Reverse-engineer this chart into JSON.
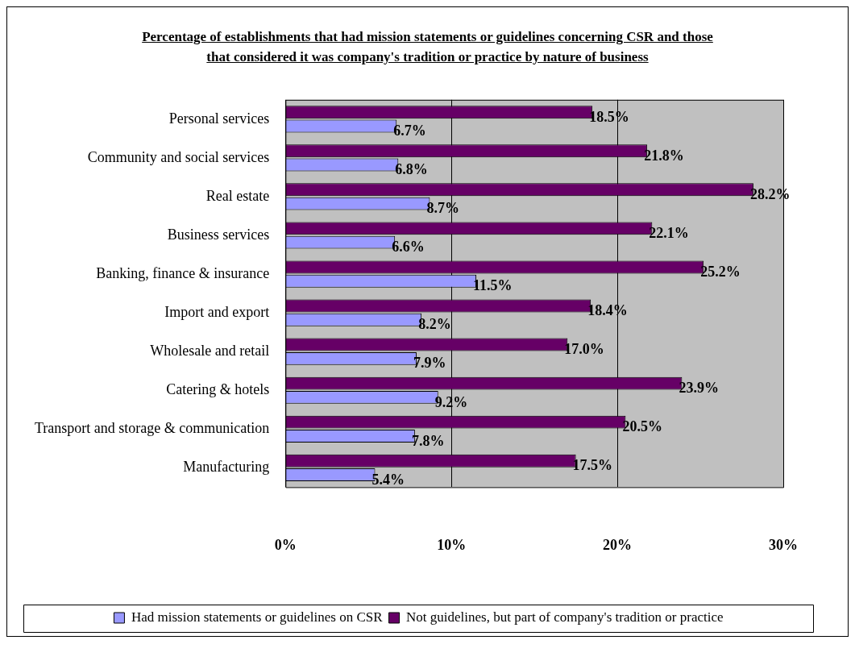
{
  "chart_data": {
    "type": "bar",
    "orientation": "horizontal",
    "title": "Percentage of establishments that had mission statements or guidelines concerning CSR and those that considered it was company's tradition or practice by nature of business",
    "categories": [
      "Personal services",
      "Community and social services",
      "Real estate",
      "Business services",
      "Banking, finance & insurance",
      "Import and export",
      "Wholesale and retail",
      "Catering & hotels",
      "Transport and storage & communication",
      "Manufacturing"
    ],
    "series": [
      {
        "name": "Had mission statements or guidelines on CSR",
        "color": "#9999ff",
        "values": [
          6.7,
          6.8,
          8.7,
          6.6,
          11.5,
          8.2,
          7.9,
          9.2,
          7.8,
          5.4
        ],
        "value_labels": [
          "6.7%",
          "6.8%",
          "8.7%",
          "6.6%",
          "11.5%",
          "8.2%",
          "7.9%",
          "9.2%",
          "7.8%",
          "5.4%"
        ]
      },
      {
        "name": "Not guidelines, but part of company's tradition or practice",
        "color": "#660066",
        "values": [
          18.5,
          21.8,
          28.2,
          22.1,
          25.2,
          18.4,
          17.0,
          23.9,
          20.5,
          17.5
        ],
        "value_labels": [
          "18.5%",
          "21.8%",
          "28.2%",
          "22.1%",
          "25.2%",
          "18.4%",
          "17.0%",
          "23.9%",
          "20.5%",
          "17.5%"
        ]
      }
    ],
    "xlim": [
      0,
      30
    ],
    "xticks": [
      {
        "value": 0,
        "label": "0%"
      },
      {
        "value": 10,
        "label": "10%"
      },
      {
        "value": 20,
        "label": "20%"
      },
      {
        "value": 30,
        "label": "30%"
      }
    ],
    "grid": "x",
    "legend": "bottom"
  }
}
